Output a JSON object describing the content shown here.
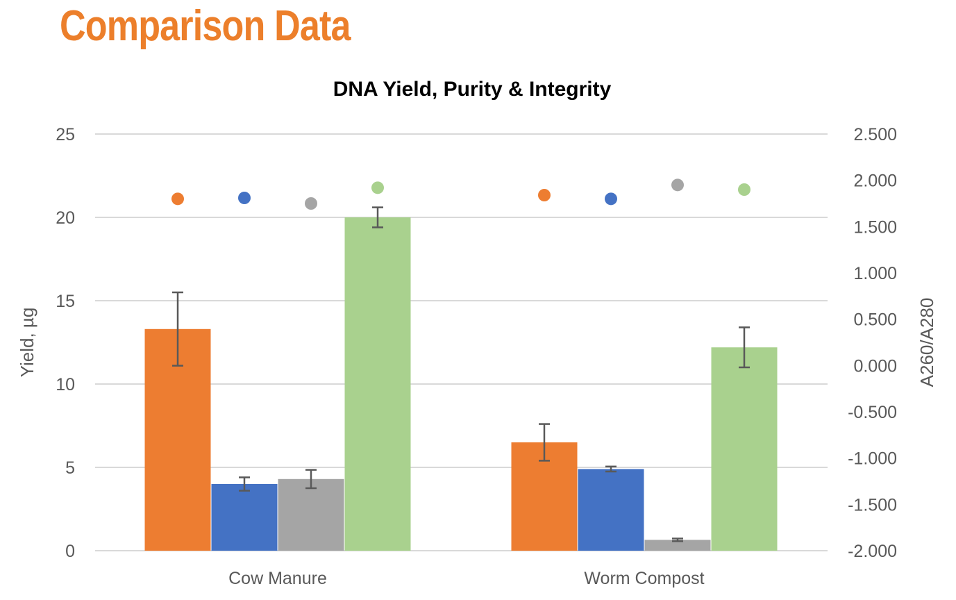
{
  "page": {
    "heading": "Comparison Data"
  },
  "chart_data": {
    "type": "bar",
    "title": "DNA Yield, Purity & Integrity",
    "categories": [
      "Cow Manure",
      "Worm Compost"
    ],
    "ylabel": "Yield, µg",
    "ylim": [
      0,
      25
    ],
    "y_ticks": [
      "0",
      "5",
      "10",
      "15",
      "20",
      "25"
    ],
    "y2label": "A260/A280",
    "y2lim": [
      -2.0,
      2.5
    ],
    "y2_ticks": [
      "-2.000",
      "-1.500",
      "-1.000",
      "-0.500",
      "0.000",
      "0.500",
      "1.000",
      "1.500",
      "2.000",
      "2.500"
    ],
    "grid": true,
    "legend": "none",
    "series": [
      {
        "color": "#ed7d31",
        "values": [
          13.3,
          6.5
        ],
        "error": [
          2.2,
          1.1
        ],
        "purity": [
          1.8,
          1.84
        ]
      },
      {
        "color": "#4472c4",
        "values": [
          4.0,
          4.9
        ],
        "error": [
          0.4,
          0.15
        ],
        "purity": [
          1.81,
          1.8
        ]
      },
      {
        "color": "#a5a5a5",
        "values": [
          4.3,
          0.65
        ],
        "error": [
          0.55,
          0.08
        ],
        "purity": [
          1.75,
          1.95
        ]
      },
      {
        "color": "#a9d18e",
        "values": [
          20.0,
          12.2
        ],
        "error": [
          0.6,
          1.2
        ],
        "purity": [
          1.92,
          1.9
        ]
      }
    ]
  }
}
